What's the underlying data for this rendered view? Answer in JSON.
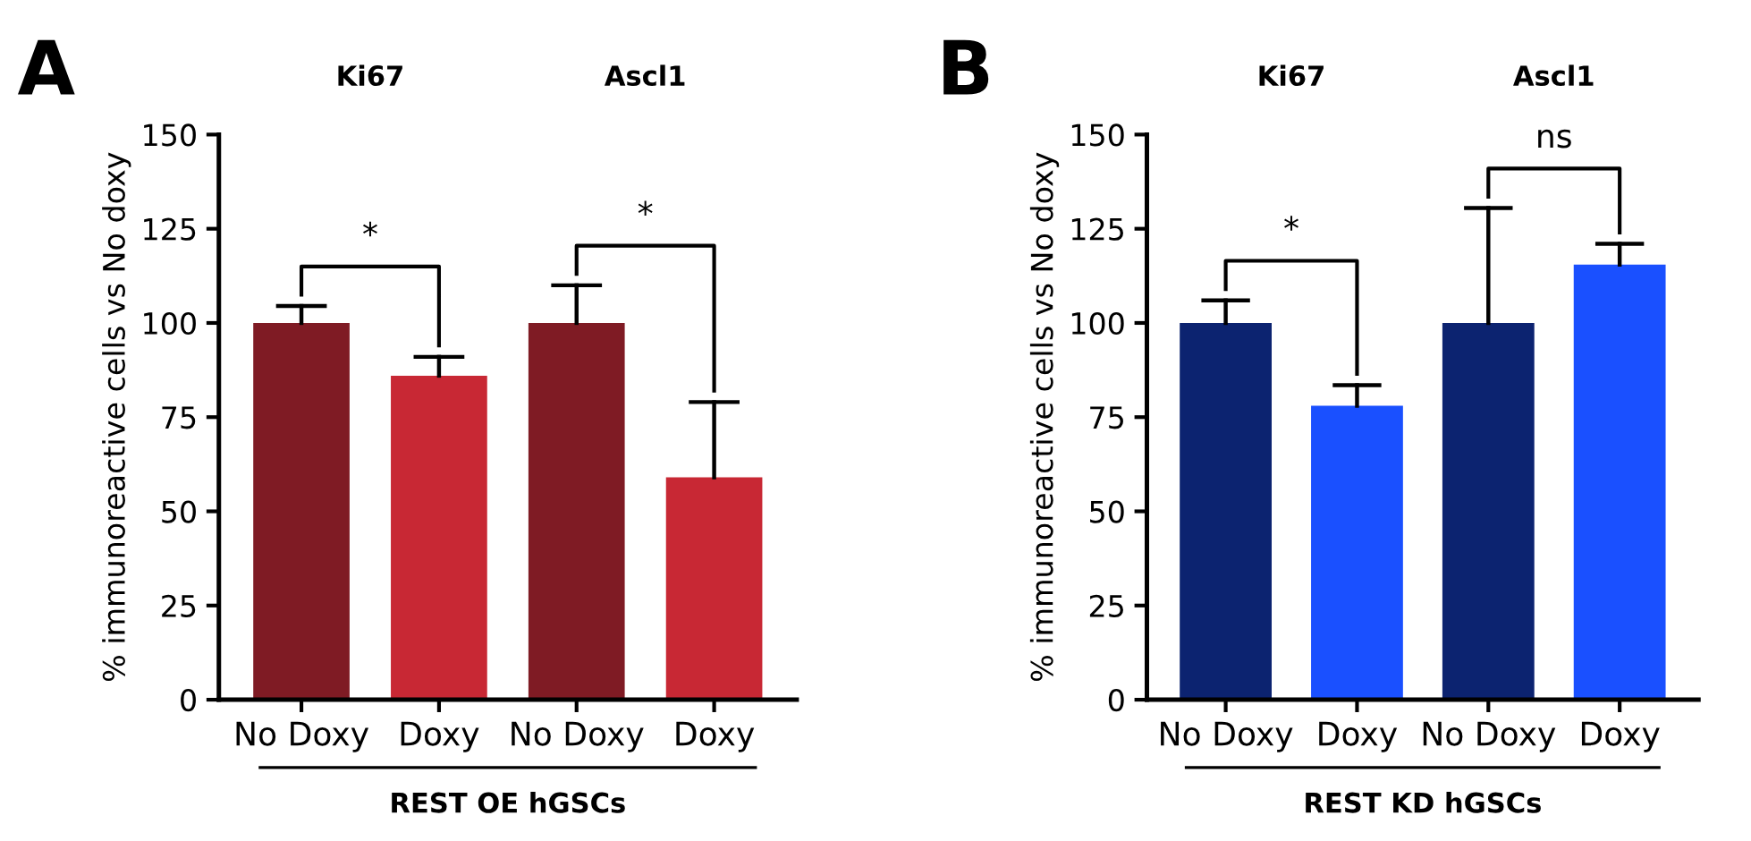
{
  "chart_data": [
    {
      "type": "bar",
      "title": "A",
      "ylabel": "% immunoreactive cells vs No doxy",
      "xlabel": "REST OE hGSCs",
      "categories": [
        "No Doxy",
        "Doxy",
        "No Doxy",
        "Doxy"
      ],
      "values": [
        100,
        86,
        100,
        59
      ],
      "colors": [
        "#7f1b24",
        "#c82834",
        "#7f1b24",
        "#c82834"
      ],
      "errors": [
        [
          100,
          104.5
        ],
        [
          86,
          91
        ],
        [
          100,
          110
        ],
        [
          59,
          79
        ]
      ],
      "ylim": [
        0,
        150
      ],
      "yticks": [
        0,
        25,
        50,
        75,
        100,
        125,
        150
      ],
      "annotations": [
        "Ki67",
        "Ascl1",
        "*",
        "*"
      ]
    },
    {
      "type": "bar",
      "title": "B",
      "ylabel": "% immunoreactive cells vs No doxy",
      "xlabel": "REST KD hGSCs",
      "categories": [
        "No Doxy",
        "Doxy",
        "No Doxy",
        "Doxy"
      ],
      "values": [
        100,
        78,
        100,
        115.5
      ],
      "colors": [
        "#0c2370",
        "#1a50ff",
        "#0c2370",
        "#1a50ff"
      ],
      "errors": [
        [
          100,
          106
        ],
        [
          78,
          83.5
        ],
        [
          100,
          130.5
        ],
        [
          115.5,
          121
        ]
      ],
      "ylim": [
        0,
        150
      ],
      "yticks": [
        0,
        25,
        50,
        75,
        100,
        125,
        150
      ],
      "annotations": [
        "Ki67",
        "Ascl1",
        "*",
        "ns"
      ]
    }
  ]
}
